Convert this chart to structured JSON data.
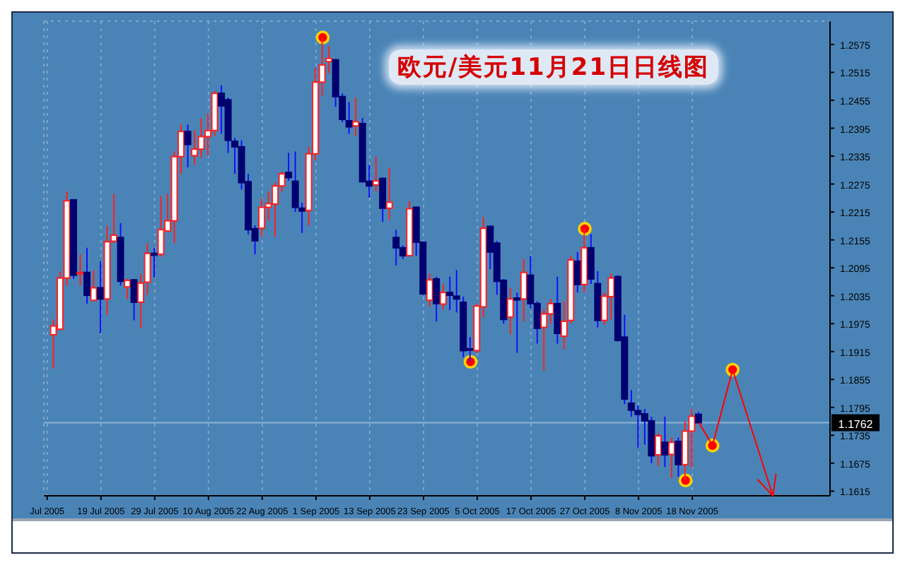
{
  "chart_data": {
    "type": "candlestick",
    "title": "欧元/美元11月21日日线图",
    "categories": [
      "Jul 2005",
      null,
      null,
      null,
      null,
      null,
      null,
      null,
      "19 Jul 2005",
      null,
      null,
      null,
      null,
      null,
      null,
      null,
      "29 Jul 2005",
      null,
      null,
      null,
      null,
      null,
      null,
      null,
      "10 Aug 2005",
      null,
      null,
      null,
      null,
      null,
      null,
      null,
      "22 Aug 2005",
      null,
      null,
      null,
      null,
      null,
      null,
      null,
      "1 Sep 2005",
      null,
      null,
      null,
      null,
      null,
      null,
      null,
      "13 Sep 2005",
      null,
      null,
      null,
      null,
      null,
      null,
      null,
      "23 Sep 2005",
      null,
      null,
      null,
      null,
      null,
      null,
      null,
      "5 Oct 2005",
      null,
      null,
      null,
      null,
      null,
      null,
      null,
      "17 Oct 2005",
      null,
      null,
      null,
      null,
      null,
      null,
      null,
      "27 Oct 2005",
      null,
      null,
      null,
      null,
      null,
      null,
      null,
      "8 Nov 2005",
      null,
      null,
      null,
      null,
      null,
      null,
      null,
      "18 Nov 2005",
      null,
      null,
      null,
      null,
      null,
      null,
      null,
      null,
      null,
      null,
      null,
      null,
      null,
      null,
      null,
      null,
      null,
      null,
      null,
      null
    ],
    "ylim": [
      1.1605,
      1.2625
    ],
    "yticks": [
      1.1615,
      1.1675,
      1.1735,
      1.1795,
      1.1855,
      1.1915,
      1.1975,
      1.2035,
      1.2095,
      1.2155,
      1.2215,
      1.2275,
      1.2335,
      1.2395,
      1.2455,
      1.2515,
      1.2575
    ],
    "grid": true,
    "ref_lines": [
      {
        "axis": "y",
        "value": 1.1762,
        "label": "1.1762",
        "color": "#8fb3d4"
      }
    ],
    "series": [
      {
        "color": "#ff2020",
        "colors": [
          null,
          "#ff2020",
          "#ff2020",
          "#ff2020",
          "#000070",
          "#ff2020",
          "#000070",
          "#ff2020",
          "#000070",
          "#ff2020",
          "#ff2020",
          "#000070",
          "#ff2020",
          "#000070",
          "#ff2020",
          "#ff2020",
          "#000070",
          "#ff2020",
          "#ff2020",
          "#ff2020",
          "#ff2020",
          "#000070",
          "#ff2020",
          "#ff2020",
          "#ff2020",
          "#ff2020",
          "#000070",
          "#000070",
          "#000070",
          "#000070",
          "#000070",
          "#000070",
          "#ff2020",
          "#ff2020",
          "#ff2020",
          "#ff2020",
          "#000070",
          "#000070",
          "#000070",
          "#ff2020",
          "#ff2020",
          "#ff2020",
          "#ff2020",
          "#000070",
          "#000070",
          "#000070",
          "#ff2020",
          "#000070",
          "#000070",
          "#ff2020",
          "#000070",
          "#ff2020",
          "#000070",
          "#000070",
          "#ff2020",
          "#000070",
          "#000070",
          "#ff2020",
          "#000070",
          "#ff2020",
          "#000070",
          "#000070",
          "#000070",
          "#000070",
          "#ff2020",
          "#ff2020",
          "#000070",
          "#000070",
          "#000070",
          "#ff2020",
          "#000070",
          "#ff2020",
          "#000070",
          "#000070",
          "#ff2020",
          "#ff2020",
          "#000070",
          "#ff2020",
          "#ff2020",
          "#000070",
          "#ff2020",
          "#000070",
          "#000070",
          "#ff2020",
          "#ff2020",
          "#000070",
          "#000070",
          "#000070",
          "#000070",
          "#000070",
          "#000070",
          "#ff2020",
          "#000070",
          "#ff2020",
          "#000070",
          "#ff2020",
          "#ff2020",
          "#000070",
          null,
          null,
          null,
          null,
          null,
          null,
          null,
          null,
          null,
          null,
          null,
          null,
          null,
          null,
          null,
          null,
          null,
          null,
          null
        ],
        "ohlc": [
          null,
          [
            1.1951,
            1.1984,
            1.1878,
            1.197
          ],
          [
            1.1963,
            1.2087,
            1.1961,
            1.2073
          ],
          [
            1.2073,
            1.2259,
            1.2057,
            1.2239
          ],
          [
            1.2241,
            1.2243,
            1.2071,
            1.2079
          ],
          [
            1.2085,
            1.2124,
            1.2057,
            1.2085
          ],
          [
            1.2085,
            1.2138,
            1.2018,
            1.2036
          ],
          [
            1.2025,
            1.209,
            1.2023,
            1.2052
          ],
          [
            1.2052,
            1.2109,
            1.1954,
            1.2028
          ],
          [
            1.2028,
            1.2186,
            1.1994,
            1.2151
          ],
          [
            1.2152,
            1.2254,
            1.2148,
            1.2165
          ],
          [
            1.216,
            1.2191,
            1.2057,
            1.2066
          ],
          [
            1.2054,
            1.2071,
            1.2028,
            1.2068
          ],
          [
            1.2069,
            1.2071,
            1.1982,
            1.2021
          ],
          [
            1.2021,
            1.2081,
            1.1965,
            1.2062
          ],
          [
            1.2064,
            1.2148,
            1.2037,
            1.2126
          ],
          [
            1.2126,
            1.2138,
            1.2074,
            1.2122
          ],
          [
            1.2124,
            1.2249,
            1.2119,
            1.2177
          ],
          [
            1.2174,
            1.2254,
            1.2172,
            1.2196
          ],
          [
            1.2196,
            1.2345,
            1.2148,
            1.2334
          ],
          [
            1.2334,
            1.2403,
            1.2297,
            1.2388
          ],
          [
            1.2388,
            1.2403,
            1.2311,
            1.236
          ],
          [
            1.2336,
            1.239,
            1.2316,
            1.235
          ],
          [
            1.235,
            1.2417,
            1.2331,
            1.2377
          ],
          [
            1.2377,
            1.2427,
            1.2336,
            1.239
          ],
          [
            1.239,
            1.2475,
            1.2379,
            1.247
          ],
          [
            1.247,
            1.2487,
            1.2383,
            1.2443
          ],
          [
            1.2456,
            1.2461,
            1.2342,
            1.2369
          ],
          [
            1.2367,
            1.2374,
            1.2297,
            1.2355
          ],
          [
            1.2355,
            1.2369,
            1.2263,
            1.2278
          ],
          [
            1.228,
            1.2297,
            1.2167,
            1.2177
          ],
          [
            1.2179,
            1.2186,
            1.2124,
            1.2153
          ],
          [
            1.218,
            1.2244,
            1.2162,
            1.2225
          ],
          [
            1.2225,
            1.2259,
            1.2196,
            1.2233
          ],
          [
            1.2232,
            1.2278,
            1.2162,
            1.2271
          ],
          [
            1.2271,
            1.2302,
            1.2259,
            1.2297
          ],
          [
            1.23,
            1.2342,
            1.2282,
            1.2289
          ],
          [
            1.2281,
            1.2345,
            1.2215,
            1.2225
          ],
          [
            1.2223,
            1.2235,
            1.217,
            1.2217
          ],
          [
            1.2218,
            1.2355,
            1.2186,
            1.234
          ],
          [
            1.234,
            1.2525,
            1.2326,
            1.2494
          ],
          [
            1.2494,
            1.259,
            1.2465,
            1.2531
          ],
          [
            1.2538,
            1.2571,
            1.2513,
            1.2545
          ],
          [
            1.2542,
            1.2544,
            1.2441,
            1.2463
          ],
          [
            1.2463,
            1.247,
            1.2408,
            1.2414
          ],
          [
            1.2411,
            1.2451,
            1.2383,
            1.2398
          ],
          [
            1.24,
            1.2461,
            1.2379,
            1.2409
          ],
          [
            1.2405,
            1.2417,
            1.2278,
            1.228
          ],
          [
            1.2281,
            1.2316,
            1.2246,
            1.2271
          ],
          [
            1.2273,
            1.2334,
            1.2259,
            1.2282
          ],
          [
            1.2287,
            1.2289,
            1.2194,
            1.2223
          ],
          [
            1.2223,
            1.231,
            1.2198,
            1.2236
          ],
          [
            1.216,
            1.2177,
            1.21,
            1.2138
          ],
          [
            1.2138,
            1.2143,
            1.2114,
            1.2121
          ],
          [
            1.2121,
            1.2238,
            1.2119,
            1.2222
          ],
          [
            1.2225,
            1.2227,
            1.2121,
            1.215
          ],
          [
            1.215,
            1.2152,
            1.2037,
            1.2039
          ],
          [
            1.2025,
            1.2083,
            1.2011,
            1.2069
          ],
          [
            1.2071,
            1.2076,
            1.198,
            1.2018
          ],
          [
            1.2017,
            1.206,
            1.2006,
            1.2042
          ],
          [
            1.2042,
            1.2076,
            1.2004,
            1.2036
          ],
          [
            1.2034,
            1.209,
            1.1999,
            1.2028
          ],
          [
            1.2021,
            1.2033,
            1.1903,
            1.1917
          ],
          [
            1.1921,
            1.1946,
            1.1893,
            1.1918
          ],
          [
            1.1917,
            1.2018,
            1.1912,
            1.2013
          ],
          [
            1.2011,
            1.2204,
            1.1989,
            1.218
          ],
          [
            1.2184,
            1.2186,
            1.2092,
            1.2129
          ],
          [
            1.2148,
            1.2153,
            1.2037,
            1.2066
          ],
          [
            1.2068,
            1.2071,
            1.1975,
            1.1984
          ],
          [
            1.1989,
            1.2052,
            1.1951,
            1.2028
          ],
          [
            1.203,
            1.2042,
            1.1912,
            1.2026
          ],
          [
            1.2028,
            1.2114,
            1.198,
            1.2085
          ],
          [
            1.2079,
            1.2121,
            1.2008,
            1.2018
          ],
          [
            1.2018,
            1.2023,
            1.1932,
            1.1965
          ],
          [
            1.1967,
            1.2006,
            1.1874,
            1.1996
          ],
          [
            1.1996,
            1.2028,
            1.1975,
            1.2018
          ],
          [
            1.2018,
            1.2076,
            1.1932,
            1.1954
          ],
          [
            1.1948,
            1.2023,
            1.192,
            1.198
          ],
          [
            1.1982,
            1.2121,
            1.1975,
            1.2112
          ],
          [
            1.2109,
            1.2129,
            1.2042,
            1.2059
          ],
          [
            1.2059,
            1.2179,
            1.2042,
            1.2138
          ],
          [
            1.2138,
            1.2167,
            1.206,
            1.2071
          ],
          [
            1.2061,
            1.2088,
            1.1967,
            1.1982
          ],
          [
            1.1982,
            1.2042,
            1.1973,
            1.2034
          ],
          [
            1.2033,
            1.2083,
            1.1984,
            1.2073
          ],
          [
            1.2076,
            1.2079,
            1.1936,
            1.1939
          ],
          [
            1.1946,
            1.1994,
            1.1802,
            1.1813
          ],
          [
            1.1804,
            1.1832,
            1.1775,
            1.1789
          ],
          [
            1.1788,
            1.1799,
            1.1708,
            1.178
          ],
          [
            1.1781,
            1.1792,
            1.1715,
            1.1766
          ],
          [
            1.1766,
            1.1775,
            1.1675,
            1.1691
          ],
          [
            1.1693,
            1.1739,
            1.1669,
            1.1734
          ],
          [
            1.172,
            1.1775,
            1.1667,
            1.1693
          ],
          [
            1.1694,
            1.173,
            1.1643,
            1.172
          ],
          [
            1.1722,
            1.173,
            1.1646,
            1.1672
          ],
          [
            1.1672,
            1.1765,
            1.1638,
            1.1744
          ],
          [
            1.1744,
            1.1792,
            1.1665,
            1.1776
          ],
          [
            1.178,
            1.1785,
            1.176,
            1.1762
          ],
          null,
          null,
          null,
          null,
          null,
          null,
          null,
          null,
          null,
          null,
          null,
          null,
          null,
          null,
          null,
          null,
          null,
          null,
          null
        ]
      },
      {
        "type": "scatter",
        "color": "#ff0000",
        "marker": "circle",
        "values": [
          null,
          null,
          null,
          null,
          null,
          null,
          null,
          null,
          null,
          null,
          null,
          null,
          null,
          null,
          null,
          null,
          null,
          null,
          null,
          null,
          null,
          null,
          null,
          null,
          null,
          null,
          null,
          null,
          null,
          null,
          null,
          null,
          null,
          null,
          null,
          null,
          null,
          null,
          null,
          null,
          null,
          1.259,
          null,
          null,
          null,
          null,
          null,
          null,
          null,
          null,
          null,
          null,
          null,
          null,
          null,
          null,
          null,
          null,
          null,
          null,
          null,
          null,
          null,
          1.1893,
          null,
          null,
          null,
          null,
          null,
          null,
          null,
          null,
          null,
          null,
          null,
          null,
          null,
          null,
          null,
          null,
          1.2179,
          null,
          null,
          null,
          null,
          null,
          null,
          null,
          null,
          null,
          null,
          null,
          null,
          null,
          null,
          1.1638,
          null,
          null,
          null,
          1.1713,
          null,
          null,
          1.1876,
          null,
          null,
          null,
          null,
          null,
          null,
          null,
          null,
          null,
          null,
          null,
          null,
          null,
          null
        ]
      }
    ]
  }
}
